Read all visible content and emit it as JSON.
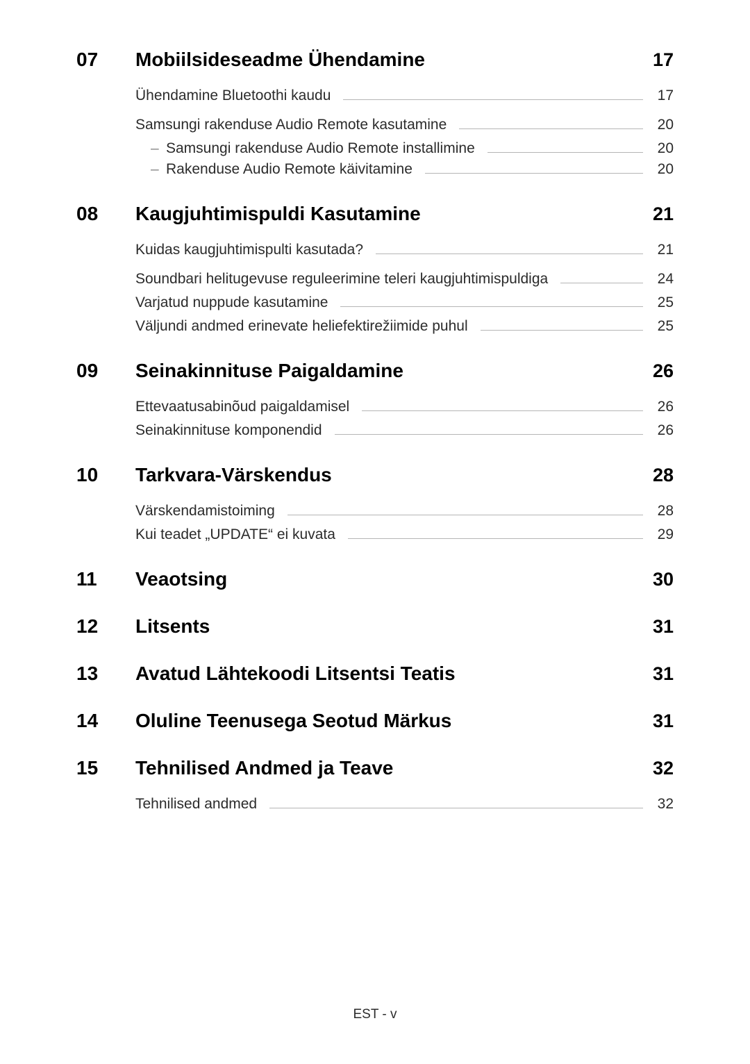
{
  "footer": "EST - v",
  "sections": [
    {
      "num": "07",
      "title": "Mobiilsideseadme Ühendamine",
      "page": "17",
      "entries": [
        {
          "label": "Ühendamine Bluetoothi kaudu",
          "page": "17"
        },
        {
          "label": "Samsungi rakenduse Audio Remote kasutamine",
          "page": "20",
          "spaced": true,
          "subs": [
            {
              "label": "Samsungi rakenduse Audio Remote installimine",
              "page": "20"
            },
            {
              "label": "Rakenduse Audio Remote käivitamine",
              "page": "20"
            }
          ]
        }
      ]
    },
    {
      "num": "08",
      "title": "Kaugjuhtimispuldi Kasutamine",
      "page": "21",
      "entries": [
        {
          "label": "Kuidas kaugjuhtimispulti kasutada?",
          "page": "21"
        },
        {
          "label": "Soundbari helitugevuse reguleerimine teleri kaugjuhtimispuldiga",
          "page": "24",
          "spaced": true
        },
        {
          "label": "Varjatud nuppude kasutamine",
          "page": "25"
        },
        {
          "label": "Väljundi andmed erinevate heliefektirežiimide puhul",
          "page": "25"
        }
      ]
    },
    {
      "num": "09",
      "title": "Seinakinnituse Paigaldamine",
      "page": "26",
      "entries": [
        {
          "label": "Ettevaatusabinõud paigaldamisel",
          "page": "26"
        },
        {
          "label": "Seinakinnituse komponendid",
          "page": "26"
        }
      ]
    },
    {
      "num": "10",
      "title": "Tarkvara-Värskendus",
      "page": "28",
      "entries": [
        {
          "label": "Värskendamistoiming",
          "page": "28"
        },
        {
          "label": "Kui teadet „UPDATE“ ei kuvata",
          "page": "29"
        }
      ]
    },
    {
      "num": "11",
      "title": "Veaotsing",
      "page": "30",
      "entries": []
    },
    {
      "num": "12",
      "title": "Litsents",
      "page": "31",
      "entries": []
    },
    {
      "num": "13",
      "title": "Avatud Lähtekoodi Litsentsi Teatis",
      "page": "31",
      "entries": []
    },
    {
      "num": "14",
      "title": "Oluline Teenusega Seotud Märkus",
      "page": "31",
      "entries": []
    },
    {
      "num": "15",
      "title": "Tehnilised Andmed ja Teave",
      "page": "32",
      "entries": [
        {
          "label": "Tehnilised andmed",
          "page": "32"
        }
      ]
    }
  ]
}
